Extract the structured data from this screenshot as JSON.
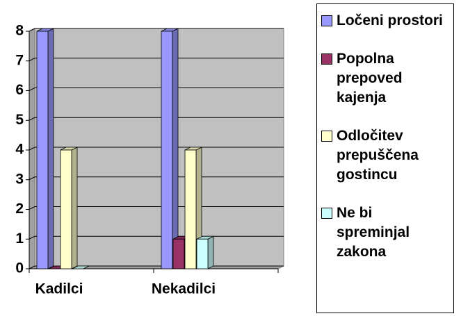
{
  "chart_data": {
    "type": "bar3d",
    "categories": [
      "Kadilci",
      "Nekadilci"
    ],
    "series": [
      {
        "name": "Ločeni prostori",
        "color": "#9999ff",
        "values": [
          8,
          8
        ]
      },
      {
        "name": "Popolna prepoved kajenja",
        "color": "#993366",
        "values": [
          0,
          1
        ]
      },
      {
        "name": "Odločitev prepuščena gostincu",
        "color": "#ffffcc",
        "values": [
          4,
          4
        ]
      },
      {
        "name": "Ne bi spreminjal zakona",
        "color": "#ccffff",
        "values": [
          0,
          1
        ]
      }
    ],
    "ylim": [
      0,
      8
    ],
    "yticks": [
      0,
      1,
      2,
      3,
      4,
      5,
      6,
      7,
      8
    ],
    "grid": true,
    "legend": "right"
  }
}
